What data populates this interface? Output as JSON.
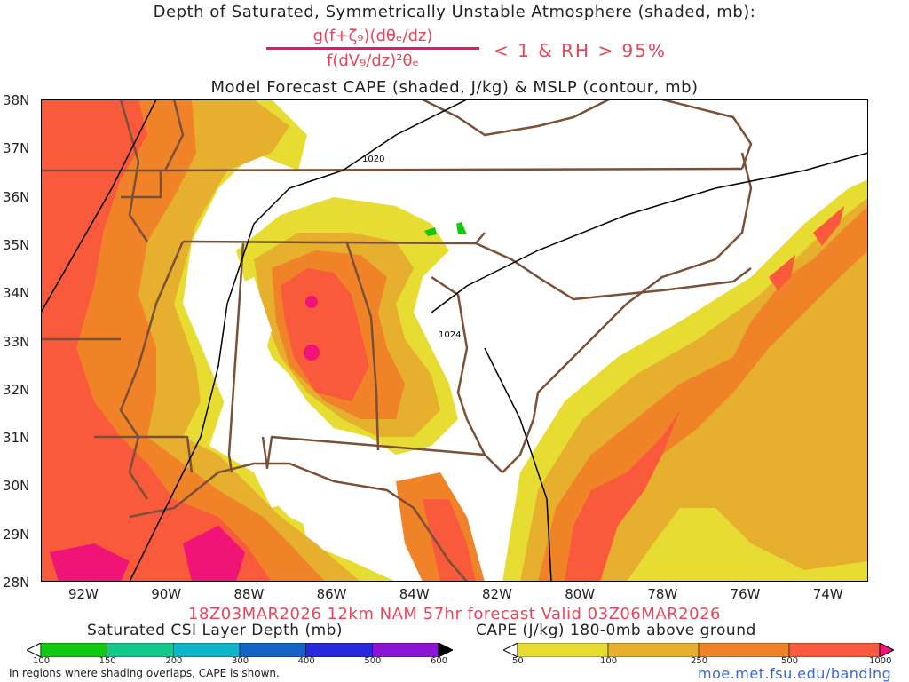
{
  "title_line1": "Depth of Saturated, Symmetrically Unstable Atmosphere (shaded, mb):",
  "formula": {
    "numerator": "g(f+ζ₉)(dθₑ/dz)",
    "denominator": "f(dV₉/dz)²θₑ",
    "condition": "< 1 & RH > 95%"
  },
  "title_line3": "Model Forecast CAPE (shaded, J/kg) & MSLP (contour, mb)",
  "axes": {
    "y_ticks": [
      "38N",
      "37N",
      "36N",
      "35N",
      "34N",
      "33N",
      "32N",
      "31N",
      "30N",
      "29N",
      "28N"
    ],
    "x_ticks": [
      "92W",
      "90W",
      "88W",
      "86W",
      "84W",
      "82W",
      "80W",
      "78W",
      "76W",
      "74W"
    ]
  },
  "contour_labels": [
    "1020",
    "1024"
  ],
  "valid_line": "18Z03MAR2026 12km NAM 57hr forecast Valid 03Z06MAR2026",
  "csi_colorbar": {
    "label": "Saturated CSI Layer Depth (mb)",
    "ticks": [
      "100",
      "150",
      "200",
      "300",
      "400",
      "500",
      "600"
    ],
    "colors": [
      "#ffffff",
      "#10c810",
      "#14c88c",
      "#10b4c8",
      "#1464c8",
      "#2828dc",
      "#8c14d2",
      "#000000"
    ]
  },
  "cape_colorbar": {
    "label": "CAPE (J/kg) 180-0mb above ground",
    "ticks": [
      "50",
      "100",
      "250",
      "500",
      "1000"
    ],
    "colors": [
      "#ffffff",
      "#e6dc32",
      "#e6af2d",
      "#f08228",
      "#fa5a3c",
      "#f01478"
    ]
  },
  "note": "In regions where shading overlaps, CAPE is shown.",
  "url": "moe.met.fsu.edu/banding",
  "colors": {
    "cape_low": "#e6dc32",
    "cape_mid": "#e6af2d",
    "cape_high": "#f08228",
    "cape_vhigh": "#fa5a3c",
    "cape_max": "#f01478",
    "csi_green": "#10c810",
    "csi_violet": "#8c14d2",
    "borders": "#7a5038",
    "title_accent": "#e8455a"
  }
}
